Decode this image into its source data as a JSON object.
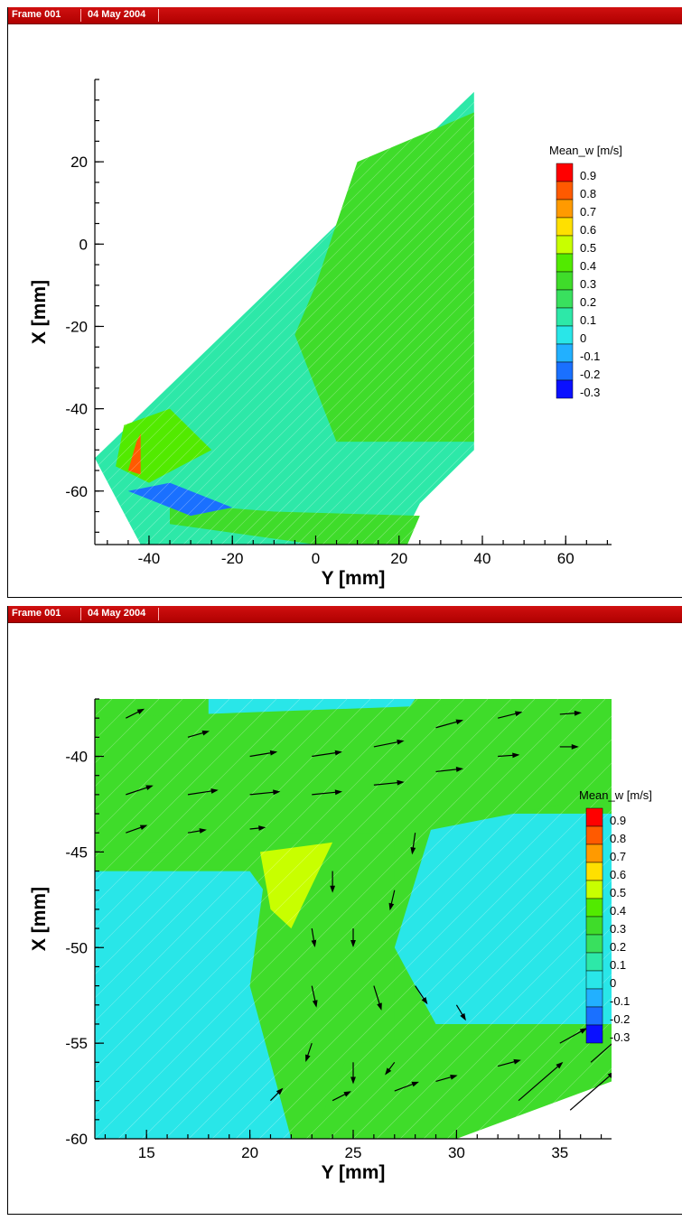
{
  "frames": [
    {
      "header": {
        "frame": "Frame 001",
        "date": "04 May 2004"
      }
    },
    {
      "header": {
        "frame": "Frame 001",
        "date": "04 May 2004"
      }
    }
  ],
  "chart_data": [
    {
      "type": "contour",
      "title": "",
      "xlabel": "Y [mm]",
      "ylabel": "X [mm]",
      "xlim": [
        -53,
        71
      ],
      "ylim": [
        -73,
        40
      ],
      "xticks": [
        -40,
        -20,
        0,
        20,
        40,
        60
      ],
      "yticks": [
        20,
        0,
        -20,
        -40,
        -60
      ],
      "legend": {
        "title": "Mean_w [m/s]",
        "levels": [
          "0.9",
          "0.8",
          "0.7",
          "0.6",
          "0.5",
          "0.4",
          "0.3",
          "0.2",
          "0.1",
          "0",
          "-0.1",
          "-0.2",
          "-0.3"
        ],
        "colors": [
          "#ff0000",
          "#ff5a00",
          "#ff9a00",
          "#ffe000",
          "#c8ff00",
          "#52ea00",
          "#3fdc2a",
          "#39e05e",
          "#2de8a8",
          "#29e6e8",
          "#22b0ff",
          "#1a70ff",
          "#0a10ff"
        ]
      },
      "regions": [
        {
          "name": "domain",
          "value": 0.05,
          "points": [
            [
              -53,
              -52
            ],
            [
              38,
              37
            ],
            [
              38,
              -50
            ],
            [
              25,
              -63
            ],
            [
              20,
              -73
            ],
            [
              -42,
              -73
            ]
          ]
        },
        {
          "name": "green-band-upper",
          "value": 0.3,
          "points": [
            [
              10,
              20
            ],
            [
              38,
              32
            ],
            [
              38,
              -48
            ],
            [
              5,
              -48
            ],
            [
              -5,
              -22
            ],
            [
              0,
              -10
            ]
          ]
        },
        {
          "name": "jet-left",
          "value": 0.4,
          "points": [
            [
              -46,
              -44
            ],
            [
              -35,
              -40
            ],
            [
              -25,
              -50
            ],
            [
              -40,
              -58
            ],
            [
              -48,
              -54
            ]
          ]
        },
        {
          "name": "jet-hotspot",
          "value": 0.85,
          "points": [
            [
              -43,
              -48
            ],
            [
              -42,
              -46
            ],
            [
              -42,
              -56
            ],
            [
              -45,
              -55
            ]
          ]
        },
        {
          "name": "bottom-jet",
          "value": 0.3,
          "points": [
            [
              -35,
              -68
            ],
            [
              0,
              -73
            ],
            [
              22,
              -73
            ],
            [
              25,
              -66
            ],
            [
              -10,
              -65
            ],
            [
              -35,
              -63
            ]
          ]
        },
        {
          "name": "negative-pocket",
          "value": -0.2,
          "points": [
            [
              -45,
              -60
            ],
            [
              -30,
              -66
            ],
            [
              -20,
              -64
            ],
            [
              -35,
              -58
            ]
          ]
        }
      ]
    },
    {
      "type": "contour",
      "title": "",
      "xlabel": "Y [mm]",
      "ylabel": "X [mm]",
      "xlim": [
        12.5,
        37.5
      ],
      "ylim": [
        -60,
        -37
      ],
      "xticks": [
        15,
        20,
        25,
        30,
        35
      ],
      "yticks": [
        -40,
        -45,
        -50,
        -55,
        -60
      ],
      "legend": {
        "title": "Mean_w [m/s]",
        "levels": [
          "0.9",
          "0.8",
          "0.7",
          "0.6",
          "0.5",
          "0.4",
          "0.3",
          "0.2",
          "0.1",
          "0",
          "-0.1",
          "-0.2",
          "-0.3"
        ],
        "colors": [
          "#ff0000",
          "#ff5a00",
          "#ff9a00",
          "#ffe000",
          "#c8ff00",
          "#52ea00",
          "#3fdc2a",
          "#39e05e",
          "#2de8a8",
          "#29e6e8",
          "#22b0ff",
          "#1a70ff",
          "#0a10ff"
        ]
      },
      "regions": [
        {
          "name": "left-cylinder",
          "value": -0.05,
          "points": [
            [
              12.5,
              -46
            ],
            [
              20,
              -46
            ],
            [
              24,
              -52
            ],
            [
              26,
              -58
            ],
            [
              22,
              -60
            ],
            [
              12.5,
              -60
            ]
          ]
        },
        {
          "name": "right-cylinder",
          "value": -0.05,
          "points": [
            [
              29,
              -43
            ],
            [
              37.5,
              -43
            ],
            [
              37.5,
              -54
            ],
            [
              29,
              -54
            ],
            [
              27,
              -50
            ]
          ]
        },
        {
          "name": "top-left-cylinder",
          "value": -0.05,
          "points": [
            [
              18,
              -37
            ],
            [
              28,
              -37
            ],
            [
              26,
              -40
            ],
            [
              18,
              -40
            ]
          ]
        },
        {
          "name": "horizontal-jet",
          "value": 0.3,
          "points": [
            [
              12.5,
              -38
            ],
            [
              37.5,
              -37
            ],
            [
              37.5,
              -42
            ],
            [
              28,
              -44
            ],
            [
              18,
              -45
            ],
            [
              12.5,
              -45
            ]
          ]
        },
        {
          "name": "vertical-jet",
          "value": 0.3,
          "points": [
            [
              21,
              -44
            ],
            [
              27,
              -44
            ],
            [
              27,
              -58
            ],
            [
              22,
              -60
            ],
            [
              20,
              -52
            ]
          ]
        },
        {
          "name": "wedge-high",
          "value": 0.5,
          "points": [
            [
              20.5,
              -45
            ],
            [
              24,
              -44.5
            ],
            [
              22,
              -49
            ],
            [
              21,
              -48
            ]
          ]
        },
        {
          "name": "bottom-jet",
          "value": 0.3,
          "points": [
            [
              25,
              -55
            ],
            [
              37.5,
              -54
            ],
            [
              37.5,
              -57
            ],
            [
              30,
              -60
            ],
            [
              23,
              -60
            ]
          ]
        },
        {
          "name": "no-data-corner",
          "value": null,
          "points": [
            [
              30,
              -60
            ],
            [
              37.5,
              -57
            ],
            [
              37.5,
              -60
            ]
          ]
        }
      ],
      "vectors": [
        [
          14,
          -38,
          1.2,
          0.6
        ],
        [
          17,
          -39,
          1.4,
          0.4
        ],
        [
          20,
          -40,
          1.8,
          0.3
        ],
        [
          23,
          -40,
          2,
          0.3
        ],
        [
          26,
          -39.5,
          2,
          0.4
        ],
        [
          29,
          -38.5,
          1.8,
          0.5
        ],
        [
          32,
          -38,
          1.6,
          0.4
        ],
        [
          35,
          -37.8,
          1.4,
          0.1
        ],
        [
          14,
          -42,
          1.8,
          0.6
        ],
        [
          17,
          -42,
          2,
          0.3
        ],
        [
          20,
          -42,
          2,
          0.2
        ],
        [
          23,
          -42,
          2,
          0.2
        ],
        [
          26,
          -41.5,
          2,
          0.2
        ],
        [
          29,
          -40.8,
          1.8,
          0.2
        ],
        [
          32,
          -40,
          1.4,
          0.1
        ],
        [
          35,
          -39.5,
          1.2,
          0
        ],
        [
          14,
          -44,
          1.4,
          0.5
        ],
        [
          17,
          -44,
          1.2,
          0.2
        ],
        [
          20,
          -43.8,
          1,
          0.1
        ],
        [
          28,
          -44,
          -0.2,
          -1.4
        ],
        [
          24,
          -46,
          0,
          -1.4
        ],
        [
          23,
          -49,
          0.2,
          -1.2
        ],
        [
          25,
          -49,
          0,
          -1.2
        ],
        [
          27,
          -47,
          -0.3,
          -1.3
        ],
        [
          23,
          -52,
          0.3,
          -1.4
        ],
        [
          26,
          -52,
          0.5,
          -1.6
        ],
        [
          28,
          -52,
          0.8,
          -1.2
        ],
        [
          30,
          -53,
          0.6,
          -1
        ],
        [
          23,
          -55,
          -0.4,
          -1.2
        ],
        [
          25,
          -56,
          0,
          -1.4
        ],
        [
          27,
          -56,
          -0.6,
          -0.8
        ],
        [
          21,
          -58,
          0.8,
          0.8
        ],
        [
          24,
          -58,
          1.2,
          0.6
        ],
        [
          27,
          -57.5,
          1.6,
          0.6
        ],
        [
          29,
          -57,
          1.4,
          0.4
        ],
        [
          32,
          -56.2,
          1.5,
          0.4
        ],
        [
          35,
          -55,
          1.8,
          1
        ],
        [
          33,
          -58,
          3,
          2.6
        ],
        [
          35.5,
          -58.5,
          3,
          2.6
        ],
        [
          36.5,
          -56,
          2.5,
          2.2
        ]
      ]
    }
  ]
}
